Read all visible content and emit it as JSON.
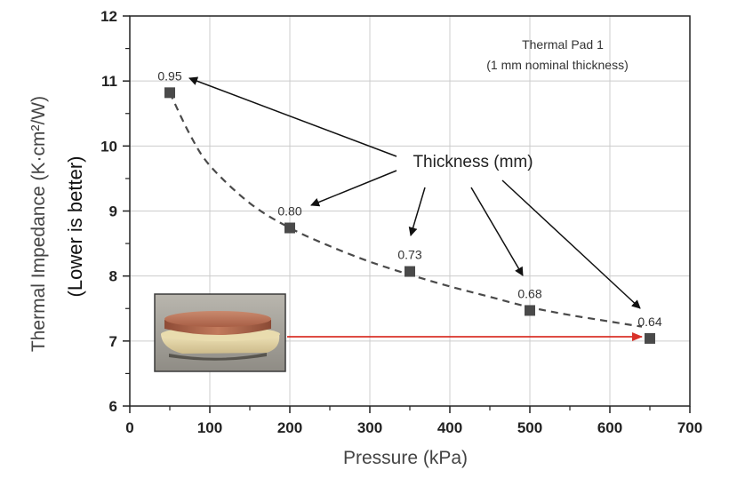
{
  "chart_data": {
    "type": "scatter",
    "xlabel": "Pressure (kPa)",
    "ylabel": "Thermal Impedance (K·cm²/W)",
    "ylabel2": "(Lower is better)",
    "xlim": [
      0,
      700
    ],
    "ylim": [
      6,
      12
    ],
    "xticks": [
      "0",
      "100",
      "200",
      "300",
      "400",
      "500",
      "600",
      "700"
    ],
    "yticks": [
      "6",
      "7",
      "8",
      "9",
      "10",
      "11",
      "12"
    ],
    "grid": true,
    "series": [
      {
        "x": [
          50,
          200,
          350,
          500,
          650
        ],
        "y": [
          10.82,
          8.74,
          8.07,
          7.47,
          7.04
        ],
        "labels": [
          "0.95",
          "0.80",
          "0.73",
          "0.68",
          "0.64"
        ]
      }
    ],
    "fit_curve": {
      "style": "dashed",
      "x": [
        50,
        75,
        100,
        150,
        200,
        250,
        300,
        350,
        400,
        450,
        500,
        550,
        600,
        640
      ],
      "y": [
        10.82,
        10.18,
        9.7,
        9.12,
        8.74,
        8.46,
        8.22,
        8.02,
        7.84,
        7.68,
        7.52,
        7.4,
        7.3,
        7.22
      ]
    },
    "annotations": {
      "title_line1": "Thermal Pad 1",
      "title_line2": "(1 mm nominal thickness)",
      "callout": "Thickness (mm)"
    },
    "colors": {
      "marker": "#4a4a4a",
      "dashed_line": "#4a4a4a",
      "red_arrow": "#d9322a",
      "grid": "#cccccc"
    }
  }
}
